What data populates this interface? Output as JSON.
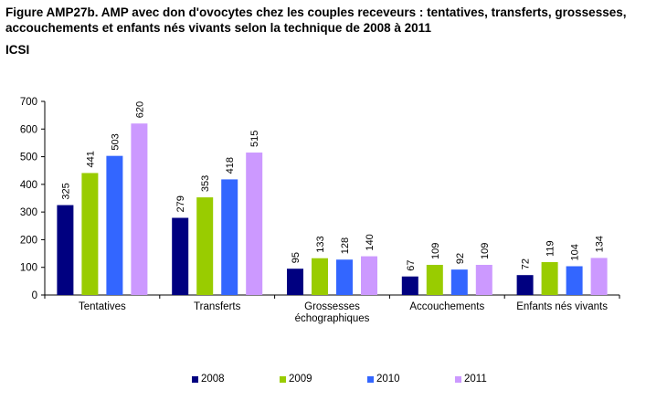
{
  "title": "Figure AMP27b. AMP avec don d'ovocytes chez les couples receveurs : tentatives, transferts, grossesses, accouchements et enfants nés vivants selon la technique de 2008 à 2011",
  "subtitle": "ICSI",
  "colors": {
    "2008": "#000080",
    "2009": "#99CC00",
    "2010": "#3366FF",
    "2011": "#CC99FF"
  },
  "chart_data": {
    "type": "bar",
    "categories": [
      "Tentatives",
      "Transferts",
      "Grossesses échographiques",
      "Accouchements",
      "Enfants nés vivants"
    ],
    "category_lines": [
      [
        "Tentatives"
      ],
      [
        "Transferts"
      ],
      [
        "Grossesses",
        "échographiques"
      ],
      [
        "Accouchements"
      ],
      [
        "Enfants nés vivants"
      ]
    ],
    "series": [
      {
        "name": "2008",
        "values": [
          325,
          279,
          95,
          67,
          72
        ]
      },
      {
        "name": "2009",
        "values": [
          441,
          353,
          133,
          109,
          119
        ]
      },
      {
        "name": "2010",
        "values": [
          503,
          418,
          128,
          92,
          104
        ]
      },
      {
        "name": "2011",
        "values": [
          620,
          515,
          140,
          109,
          134
        ]
      }
    ],
    "ylim": [
      0,
      700
    ],
    "yticks": [
      0,
      100,
      200,
      300,
      400,
      500,
      600,
      700
    ],
    "legend_position": "bottom",
    "grid": false
  }
}
